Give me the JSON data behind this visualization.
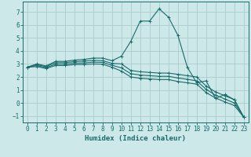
{
  "title": "",
  "xlabel": "Humidex (Indice chaleur)",
  "bg_color": "#cce8e8",
  "grid_color": "#aacccc",
  "line_color": "#1a6b6b",
  "spine_color": "#1a6b6b",
  "xlim": [
    -0.5,
    23.5
  ],
  "ylim": [
    -1.5,
    7.8
  ],
  "xticks": [
    0,
    1,
    2,
    3,
    4,
    5,
    6,
    7,
    8,
    9,
    10,
    11,
    12,
    13,
    14,
    15,
    16,
    17,
    18,
    19,
    20,
    21,
    22,
    23
  ],
  "yticks": [
    -1,
    0,
    1,
    2,
    3,
    4,
    5,
    6,
    7
  ],
  "lines": [
    {
      "x": [
        0,
        1,
        2,
        3,
        4,
        5,
        6,
        7,
        8,
        9,
        10,
        11,
        12,
        13,
        14,
        15,
        16,
        17,
        18,
        19,
        20,
        21,
        22,
        23
      ],
      "y": [
        2.75,
        3.0,
        2.85,
        3.2,
        3.2,
        3.3,
        3.35,
        3.45,
        3.45,
        3.25,
        3.6,
        4.75,
        6.3,
        6.3,
        7.25,
        6.6,
        5.2,
        2.75,
        1.55,
        1.7,
        0.35,
        0.65,
        0.25,
        -1.1
      ]
    },
    {
      "x": [
        0,
        1,
        2,
        3,
        4,
        5,
        6,
        7,
        8,
        9,
        10,
        11,
        12,
        13,
        14,
        15,
        16,
        17,
        18,
        19,
        20,
        21,
        22,
        23
      ],
      "y": [
        2.75,
        2.95,
        2.8,
        3.1,
        3.1,
        3.18,
        3.22,
        3.28,
        3.25,
        3.05,
        3.0,
        2.5,
        2.4,
        2.35,
        2.3,
        2.3,
        2.2,
        2.1,
        2.0,
        1.3,
        0.85,
        0.55,
        0.25,
        -1.1
      ]
    },
    {
      "x": [
        0,
        1,
        2,
        3,
        4,
        5,
        6,
        7,
        8,
        9,
        10,
        11,
        12,
        13,
        14,
        15,
        16,
        17,
        18,
        19,
        20,
        21,
        22,
        23
      ],
      "y": [
        2.75,
        2.88,
        2.72,
        2.98,
        2.98,
        3.06,
        3.08,
        3.14,
        3.12,
        2.9,
        2.7,
        2.25,
        2.15,
        2.1,
        2.05,
        2.05,
        1.92,
        1.82,
        1.7,
        1.05,
        0.6,
        0.3,
        0.0,
        -1.1
      ]
    },
    {
      "x": [
        0,
        1,
        2,
        3,
        4,
        5,
        6,
        7,
        8,
        9,
        10,
        11,
        12,
        13,
        14,
        15,
        16,
        17,
        18,
        19,
        20,
        21,
        22,
        23
      ],
      "y": [
        2.75,
        2.8,
        2.65,
        2.88,
        2.88,
        2.95,
        2.96,
        3.0,
        2.98,
        2.75,
        2.45,
        2.0,
        1.9,
        1.85,
        1.8,
        1.8,
        1.65,
        1.55,
        1.45,
        0.8,
        0.38,
        0.08,
        -0.2,
        -1.1
      ]
    }
  ]
}
